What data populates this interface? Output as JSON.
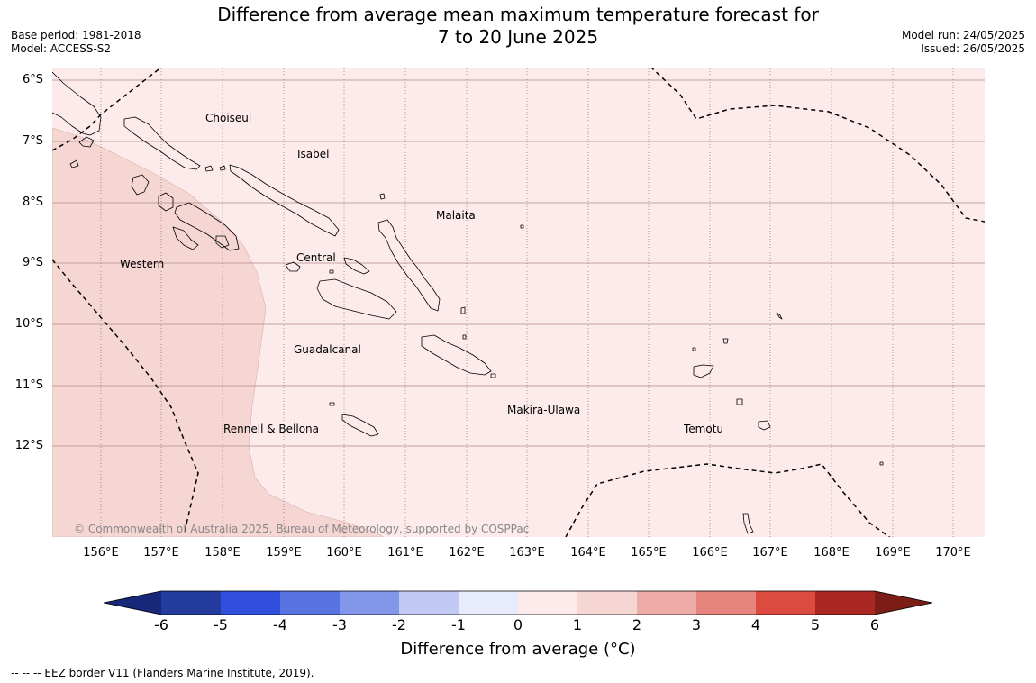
{
  "header": {
    "title_line1": "Difference from average mean maximum temperature forecast for",
    "title_line2": "7 to 20 June 2025",
    "base_period": "Base period: 1981-2018",
    "model": "Model: ACCESS-S2",
    "model_run": "Model run: 24/05/2025",
    "issued": "Issued: 26/05/2025"
  },
  "map": {
    "lat_labels": [
      "6°S",
      "7°S",
      "8°S",
      "9°S",
      "10°S",
      "11°S",
      "12°S"
    ],
    "lon_labels": [
      "156°E",
      "157°E",
      "158°E",
      "159°E",
      "160°E",
      "161°E",
      "162°E",
      "163°E",
      "164°E",
      "165°E",
      "166°E",
      "167°E",
      "168°E",
      "169°E",
      "170°E"
    ],
    "regions": {
      "choiseul": "Choiseul",
      "isabel": "Isabel",
      "malaita": "Malaita",
      "western": "Western",
      "central": "Central",
      "guadalcanal": "Guadalcanal",
      "makira": "Makira-Ulawa",
      "rennell": "Rennell & Bellona",
      "temotu": "Temotu"
    },
    "colors": {
      "anomaly_0_1": "#fcebea",
      "anomaly_1_2": "#f6d6d3",
      "land_outline": "#000000",
      "gridline": "#b08a8a"
    },
    "copyright": "© Commonwealth of Australia 2025, Bureau of Meteorology, supported by COSPPac"
  },
  "colorbar": {
    "labels": [
      "-6",
      "-5",
      "-4",
      "-3",
      "-2",
      "-1",
      "0",
      "1",
      "2",
      "3",
      "4",
      "5",
      "6"
    ],
    "colors": [
      "#243c9e",
      "#2f4fdc",
      "#5874e2",
      "#8397ea",
      "#c2c9f3",
      "#e8ebfb",
      "#fcebea",
      "#f6d6d3",
      "#eeaca8",
      "#e5857e",
      "#dc4a40",
      "#aa2822"
    ],
    "low_extend": "#17277a",
    "high_extend": "#7c1d18",
    "title": "Difference from average (°C)"
  },
  "footnote": "--  --  -- EEZ border V11 (Flanders Marine Institute, 2019)."
}
